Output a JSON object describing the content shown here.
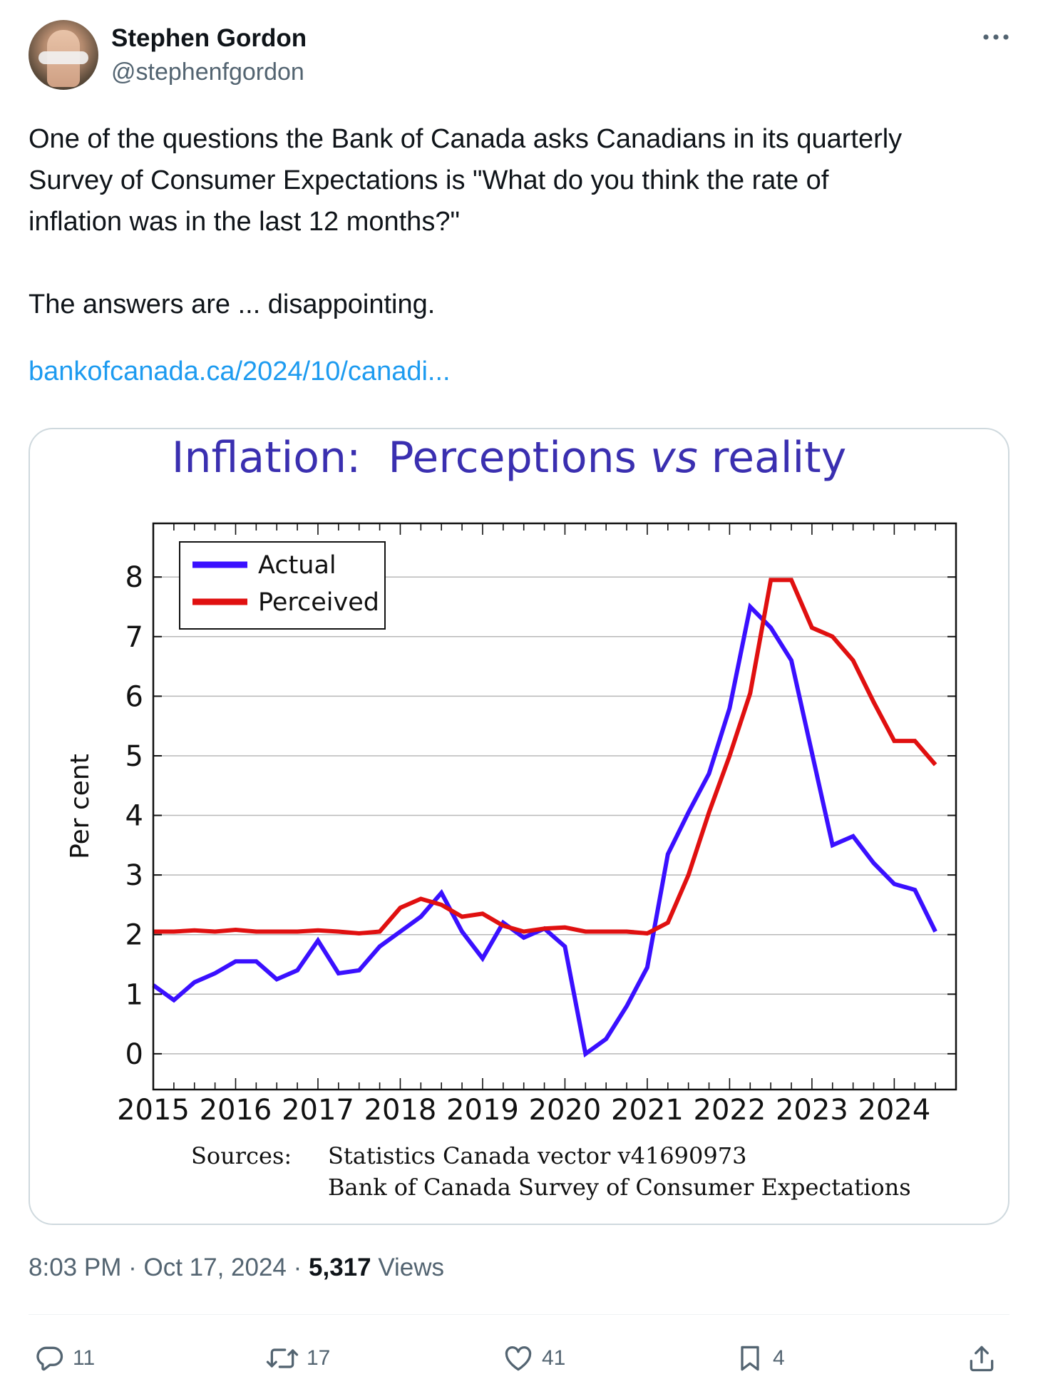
{
  "author": {
    "name": "Stephen Gordon",
    "handle": "@stephenfgordon"
  },
  "tweet": {
    "line1": "One of the questions the Bank of Canada asks Canadians in its quarterly",
    "line2": "Survey of Consumer Expectations is \"What do you think the rate of",
    "line3": "inflation was in the last 12 months?\"",
    "line4": "The answers are ... disappointing.",
    "link": "bankofcanada.ca/2024/10/canadi..."
  },
  "meta": {
    "time": "8:03 PM",
    "sep1": " · ",
    "date": "Oct 17, 2024",
    "sep2": " · ",
    "views_count": "5,317",
    "views_label": " Views"
  },
  "actions": {
    "replies": "11",
    "reposts": "17",
    "likes": "41",
    "bookmarks": "4"
  },
  "icons": {
    "reply": "reply-icon",
    "repost": "repost-icon",
    "like": "heart-icon",
    "bookmark": "bookmark-icon",
    "share": "share-icon",
    "more": "more-icon"
  },
  "chart_data": {
    "type": "line",
    "title": "Inflation:  Perceptions vs reality",
    "ylabel": "Per cent",
    "xlabel": "",
    "xlim": [
      2015,
      2024.75
    ],
    "ylim": [
      -0.6,
      8.9
    ],
    "yticks": [
      0,
      1,
      2,
      3,
      4,
      5,
      6,
      7,
      8
    ],
    "xticks": [
      2015,
      2016,
      2017,
      2018,
      2019,
      2020,
      2021,
      2022,
      2023,
      2024
    ],
    "grid": true,
    "legend": "top-left",
    "x": [
      2015.0,
      2015.25,
      2015.5,
      2015.75,
      2016.0,
      2016.25,
      2016.5,
      2016.75,
      2017.0,
      2017.25,
      2017.5,
      2017.75,
      2018.0,
      2018.25,
      2018.5,
      2018.75,
      2019.0,
      2019.25,
      2019.5,
      2019.75,
      2020.0,
      2020.25,
      2020.5,
      2020.75,
      2021.0,
      2021.25,
      2021.5,
      2021.75,
      2022.0,
      2022.25,
      2022.5,
      2022.75,
      2023.0,
      2023.25,
      2023.5,
      2023.75,
      2024.0,
      2024.25,
      2024.5
    ],
    "series": [
      {
        "name": "Actual",
        "color": "#3a10ff",
        "values": [
          1.15,
          0.9,
          1.2,
          1.35,
          1.55,
          1.55,
          1.25,
          1.4,
          1.9,
          1.35,
          1.4,
          1.8,
          2.05,
          2.3,
          2.7,
          2.05,
          1.6,
          2.2,
          1.95,
          2.1,
          1.8,
          0.0,
          0.25,
          0.8,
          1.45,
          3.35,
          4.05,
          4.7,
          5.8,
          7.5,
          7.15,
          6.6,
          5.05,
          3.5,
          3.65,
          3.2,
          2.85,
          2.75,
          2.05
        ]
      },
      {
        "name": "Perceived",
        "color": "#e01010",
        "values": [
          2.05,
          2.05,
          2.07,
          2.05,
          2.08,
          2.05,
          2.05,
          2.05,
          2.07,
          2.05,
          2.02,
          2.05,
          2.45,
          2.6,
          2.5,
          2.3,
          2.35,
          2.15,
          2.05,
          2.1,
          2.12,
          2.05,
          2.05,
          2.05,
          2.02,
          2.2,
          3.0,
          4.05,
          5.0,
          6.05,
          7.95,
          7.95,
          7.15,
          7.0,
          6.6,
          5.9,
          5.25,
          5.25,
          4.85
        ]
      }
    ],
    "sources_label": "Sources:",
    "sources": [
      "Statistics Canada vector v41690973",
      "Bank of Canada Survey of Consumer Expectations"
    ]
  }
}
